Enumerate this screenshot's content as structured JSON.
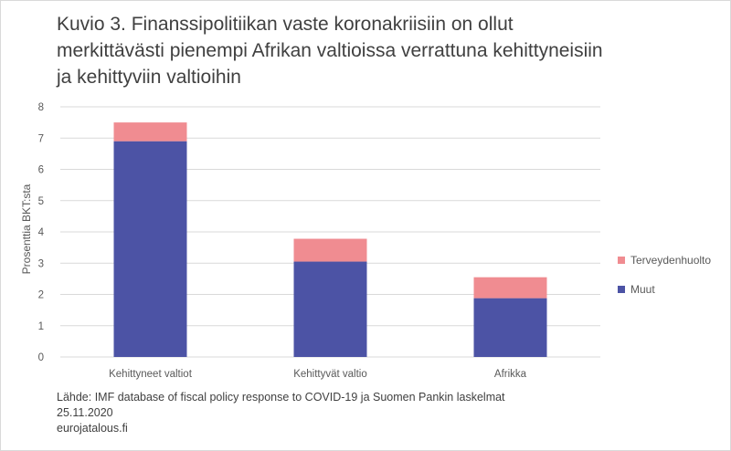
{
  "title_lines": [
    "Kuvio 3. Finanssipolitiikan vaste koronakriisiin on ollut",
    "merkittävästi pienempi Afrikan valtioissa verrattuna kehittyneisiin",
    "ja kehittyviin valtioihin"
  ],
  "source_lines": [
    "Lähde: IMF database of fiscal policy response to COVID-19 ja Suomen Pankin laskelmat",
    "25.11.2020",
    "eurojatalous.fi"
  ],
  "colors": {
    "muut": "#4c53a5",
    "terveydenhuolto": "#f08c91",
    "grid": "#d9d9d9",
    "axis_text": "#595959"
  },
  "chart_data": {
    "type": "bar",
    "stacked": true,
    "categories": [
      "Kehittyneet valtiot",
      "Kehittyvät valtio",
      "Afrikka"
    ],
    "series": [
      {
        "name": "Muut",
        "values": [
          6.9,
          3.05,
          1.88
        ]
      },
      {
        "name": "Terveydenhuolto",
        "values": [
          0.6,
          0.73,
          0.67
        ]
      }
    ],
    "ylabel": "Prosenttia BKT:sta",
    "ylim": [
      0,
      8
    ],
    "yticks": [
      "0",
      "1",
      "2",
      "3",
      "4",
      "5",
      "6",
      "7",
      "8"
    ],
    "grid": true,
    "legend_position": "right"
  }
}
